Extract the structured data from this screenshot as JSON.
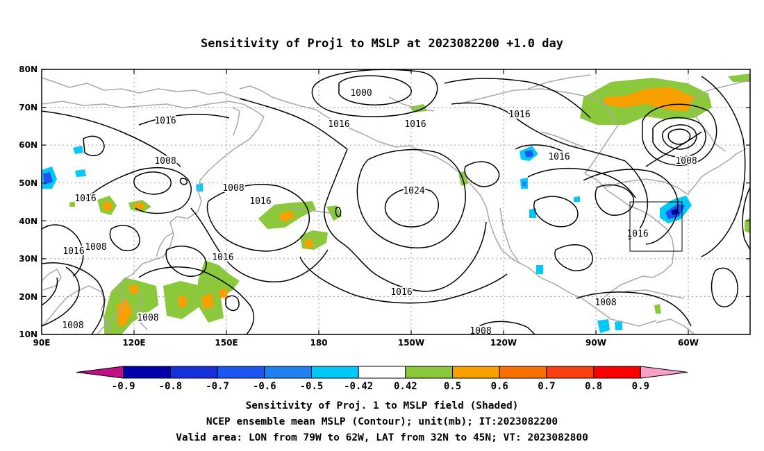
{
  "title": "Sensitivity of Proj1 to MSLP at 2023082200 +1.0 day",
  "lat_labels": [
    "80N",
    "70N",
    "60N",
    "50N",
    "40N",
    "30N",
    "20N",
    "10N"
  ],
  "lon_labels": [
    "90E",
    "120E",
    "150E",
    "180",
    "150W",
    "120W",
    "90W",
    "60W"
  ],
  "contour_labels": [
    "1000",
    "1016",
    "1016",
    "1016",
    "1016",
    "1016",
    "1016",
    "1016",
    "1016",
    "1016",
    "1016",
    "1008",
    "1008",
    "1008",
    "1008",
    "1008",
    "1008",
    "1008",
    "1024"
  ],
  "colorbar": {
    "labels": [
      "-0.9",
      "-0.8",
      "-0.7",
      "-0.6",
      "-0.5",
      "-0.42",
      "0.42",
      "0.5",
      "0.6",
      "0.7",
      "0.8",
      "0.9"
    ],
    "colors": [
      "#c01088",
      "#0000a8",
      "#1530d8",
      "#1c56f0",
      "#2080f0",
      "#00c8f8",
      "#ffffff",
      "#8cc83c",
      "#f8a000",
      "#f87000",
      "#f84010",
      "#f80000",
      "#f8a0c8"
    ]
  },
  "captions": [
    "Sensitivity of Proj. 1 to MSLP field (Shaded)",
    "NCEP ensemble mean MSLP (Contour); unit(mb); IT:2023082200",
    "Valid area: LON from 79W to 62W, LAT from 32N to 45N; VT: 2023082800"
  ]
}
